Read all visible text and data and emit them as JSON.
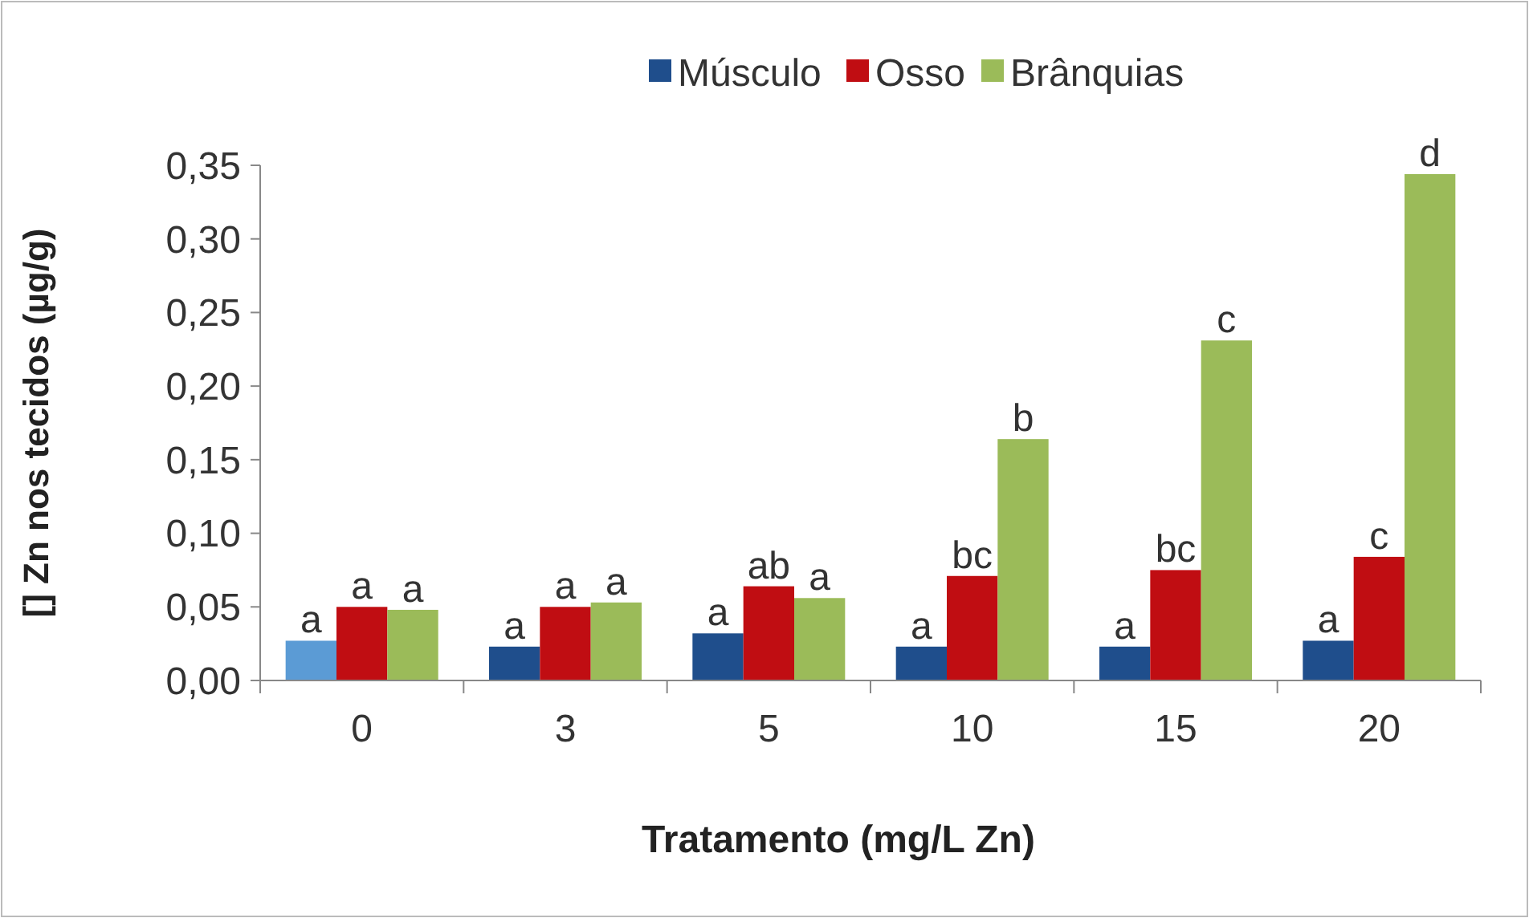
{
  "chart_data": {
    "type": "bar",
    "xlabel": "Tratamento (mg/L Zn)",
    "ylabel": "[] Zn nos tecidos (µg/g)",
    "categories": [
      "0",
      "3",
      "5",
      "10",
      "15",
      "20"
    ],
    "series": [
      {
        "name": "Músculo",
        "color": "#1f4e8c",
        "colors": [
          "#5b9bd5",
          "#1f4e8c",
          "#1f4e8c",
          "#1f4e8c",
          "#1f4e8c",
          "#1f4e8c"
        ],
        "values": [
          0.027,
          0.023,
          0.032,
          0.023,
          0.023,
          0.027
        ]
      },
      {
        "name": "Osso",
        "color": "#c00d12",
        "values": [
          0.05,
          0.05,
          0.064,
          0.071,
          0.075,
          0.084
        ]
      },
      {
        "name": "Brânquias",
        "color": "#9bbb59",
        "values": [
          0.048,
          0.053,
          0.056,
          0.164,
          0.231,
          0.344
        ]
      }
    ],
    "ylim": [
      0,
      0.35
    ],
    "yticks": [
      {
        "value": 0,
        "label": "0,00"
      },
      {
        "value": 0.05,
        "label": "0,05"
      },
      {
        "value": 0.1,
        "label": "0,10"
      },
      {
        "value": 0.15,
        "label": "0,15"
      },
      {
        "value": 0.2,
        "label": "0,20"
      },
      {
        "value": 0.25,
        "label": "0,25"
      },
      {
        "value": 0.3,
        "label": "0,30"
      },
      {
        "value": 0.35,
        "label": "0,35"
      }
    ],
    "grid": false,
    "legend": "top",
    "annotations": [
      "a",
      "a",
      "a",
      "a",
      "a",
      "a",
      "a",
      "ab",
      "a",
      "a",
      "bc",
      "b",
      "a",
      "bc",
      "c",
      "a",
      "c",
      "d"
    ]
  }
}
